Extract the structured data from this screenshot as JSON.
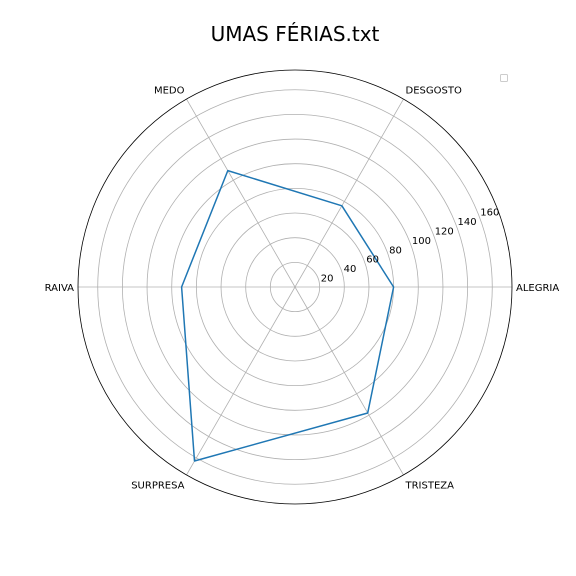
{
  "chart_data": {
    "type": "radar",
    "title": "UMAS FÉRIAS.txt",
    "categories": [
      "ALEGRIA",
      "DESGOSTO",
      "MEDO",
      "RAIVA",
      "SURPRESA",
      "TRISTEZA"
    ],
    "series": [
      {
        "values": [
          80,
          76,
          109,
          92,
          163,
          118
        ],
        "color": "#1f77b4"
      }
    ],
    "rlim": [
      0,
      176
    ],
    "rticks": [
      20,
      40,
      60,
      80,
      100,
      120,
      140,
      160
    ],
    "tick_labels": [
      "20",
      "40",
      "60",
      "80",
      "100",
      "120",
      "140",
      "160"
    ],
    "grid": true,
    "legend": "top-right",
    "grid_color": "#b0b0b0",
    "outline_color": "#000000"
  }
}
